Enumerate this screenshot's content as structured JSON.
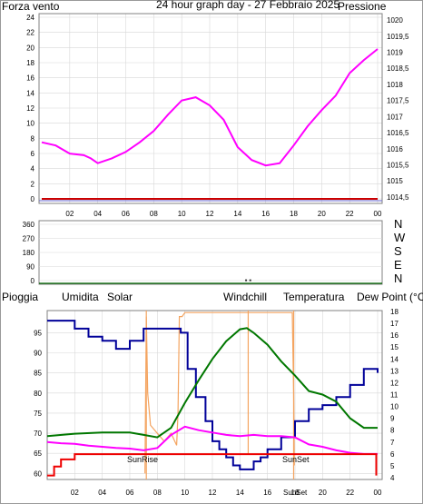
{
  "colors": {
    "wind": "#cc0000",
    "pressure": "#ff00ff",
    "title": "#ffcc00",
    "humidity": "#000099",
    "solar": "#cc9933",
    "windchill": "#006699",
    "temperature": "#007700",
    "dewpoint": "#cc0099",
    "rain": "#ee0000",
    "sun_line": "#f4a460",
    "grid": "#d8d8d8"
  },
  "top_panel": {
    "left_title": "Forza vento",
    "title": "24 hour graph day - 27 Febbraio 2025",
    "right_title": "Pressione"
  },
  "dir_panel": {
    "letters": [
      "N",
      "W",
      "S",
      "E",
      "N"
    ]
  },
  "bottom_panel": {
    "legend": {
      "rain": "Pioggia",
      "humidity": "Umidita",
      "solar": "Solar",
      "windchill": "Windchill",
      "temperature": "Temperatura",
      "dewpoint": "Dew Point (°C)"
    },
    "sunrise_label": "SunRise",
    "sunset_label": "SunSet",
    "sunset_tick": "SunSet"
  },
  "chart_data": [
    {
      "type": "line",
      "xlabel": "",
      "x_ticks": [
        "02",
        "04",
        "06",
        "08",
        "10",
        "12",
        "14",
        "16",
        "18",
        "20",
        "22",
        "00"
      ],
      "y_left_ticks": [
        0,
        2,
        4,
        6,
        8,
        10,
        12,
        14,
        16,
        18,
        20,
        22,
        24
      ],
      "y_right_ticks": [
        "1014,5",
        "1015",
        "1015,5",
        "1016",
        "1016,5",
        "1017",
        "1017,5",
        "1018",
        "1018,5",
        "1019",
        "1019,5",
        "1020"
      ],
      "ylim_left": [
        0,
        24
      ],
      "ylim_right": [
        1014.3,
        1020.2
      ],
      "series": [
        {
          "name": "Forza vento",
          "axis": "left",
          "x": [
            0,
            24
          ],
          "values": [
            0,
            0
          ]
        },
        {
          "name": "Pressione",
          "axis": "right",
          "x": [
            0,
            1,
            2,
            3,
            3.5,
            4,
            5,
            6,
            7,
            8,
            9,
            10,
            11,
            12,
            13,
            14,
            15,
            16,
            17,
            18,
            19,
            20,
            21,
            22,
            23,
            24
          ],
          "values": [
            1016.2,
            1016.1,
            1015.85,
            1015.8,
            1015.7,
            1015.55,
            1015.7,
            1015.9,
            1016.2,
            1016.55,
            1017.05,
            1017.5,
            1017.6,
            1017.35,
            1016.9,
            1016.05,
            1015.65,
            1015.48,
            1015.55,
            1016.1,
            1016.7,
            1017.2,
            1017.65,
            1018.35,
            1018.75,
            1019.1
          ]
        }
      ]
    },
    {
      "type": "scatter",
      "x_ticks": [],
      "y_ticks": [
        360,
        270,
        180,
        90,
        0
      ],
      "ylim": [
        0,
        360
      ],
      "series": [
        {
          "name": "wind direction",
          "x": [
            14.6,
            14.9
          ],
          "values": [
            2,
            2
          ]
        }
      ]
    },
    {
      "type": "line",
      "x_ticks": [
        "02",
        "04",
        "06",
        "08",
        "10",
        "12",
        "14",
        "16",
        "18",
        "20",
        "22",
        "00"
      ],
      "y_left_ticks": [
        60,
        65,
        70,
        75,
        80,
        85,
        90,
        95
      ],
      "y_right_ticks": [
        4,
        5,
        6,
        7,
        8,
        9,
        10,
        11,
        12,
        13,
        14,
        15,
        16,
        17,
        18
      ],
      "ylim_left": [
        58.5,
        100.5
      ],
      "ylim_right": [
        4,
        18
      ],
      "sunrise_hour": 7.2,
      "sunset_hour": 17.9,
      "series": [
        {
          "name": "Umidita",
          "axis": "left",
          "x": [
            0,
            1,
            2,
            3,
            4,
            5,
            6,
            7,
            8,
            9,
            9.7,
            10.2,
            10.8,
            11.5,
            12,
            12.5,
            13,
            13.5,
            14,
            14.5,
            15,
            15.5,
            16,
            17,
            18,
            19,
            20,
            21,
            22,
            23,
            24
          ],
          "values": [
            98,
            98,
            96,
            94,
            93,
            91,
            93,
            96,
            96,
            96,
            95,
            86,
            79,
            73,
            68,
            66,
            64,
            62,
            61,
            61,
            63,
            64,
            66,
            69,
            73,
            76,
            77,
            79,
            82,
            86,
            85
          ]
        },
        {
          "name": "Temperatura",
          "axis": "right",
          "x": [
            0,
            2,
            4,
            6,
            7,
            8,
            9,
            10,
            11,
            12,
            13,
            14,
            14.5,
            15,
            16,
            17,
            18,
            19,
            20,
            21,
            22,
            23,
            24
          ],
          "values": [
            7.5,
            7.7,
            7.8,
            7.8,
            7.6,
            7.4,
            8.2,
            10.3,
            12.2,
            14.0,
            15.5,
            16.5,
            16.6,
            16.2,
            15.2,
            13.8,
            12.6,
            11.3,
            11.0,
            10.4,
            9.0,
            8.2,
            8.2
          ]
        },
        {
          "name": "Dew Point (°C)",
          "axis": "right",
          "x": [
            0,
            1,
            2,
            3,
            4,
            5,
            6,
            7,
            8,
            9,
            10,
            11,
            12,
            13,
            14,
            15,
            16,
            17,
            18,
            19,
            20,
            21,
            22,
            23,
            24
          ],
          "values": [
            7.0,
            6.9,
            6.85,
            6.7,
            6.6,
            6.5,
            6.45,
            6.3,
            6.5,
            7.6,
            8.3,
            8.0,
            7.8,
            7.6,
            7.5,
            7.6,
            7.5,
            7.5,
            7.4,
            6.8,
            6.6,
            6.3,
            6.1,
            6.0,
            6.0
          ]
        },
        {
          "name": "Pioggia",
          "axis": "left",
          "x": [
            0,
            0.5,
            0.5,
            1.0,
            1.0,
            2.0,
            2.0,
            23.9,
            23.9
          ],
          "values": [
            59.5,
            59.5,
            61.7,
            61.7,
            63.5,
            63.5,
            64.8,
            64.8,
            59.5
          ]
        },
        {
          "name": "Solar",
          "axis": "left",
          "x": [
            7.1,
            7.2,
            7.3,
            7.5,
            8,
            8.5,
            9,
            9.4,
            9.5,
            9.6,
            9.8,
            10,
            10.5,
            12,
            14,
            16,
            17.8,
            17.9,
            17.95
          ],
          "values": [
            60,
            99,
            80,
            72,
            70,
            68,
            70,
            67,
            75,
            99,
            99,
            100,
            100,
            100,
            100,
            100,
            100,
            80,
            62
          ]
        }
      ]
    }
  ]
}
